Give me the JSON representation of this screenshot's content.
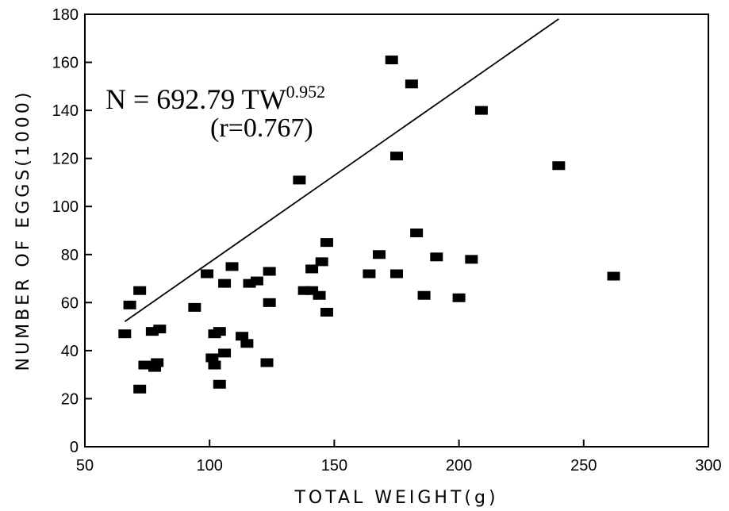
{
  "chart_data": {
    "type": "scatter",
    "xlabel": "TOTAL WEIGHT(g)",
    "ylabel": "NUMBER OF EGGS(1000)",
    "xlim": [
      50,
      300
    ],
    "ylim": [
      0,
      180
    ],
    "xticks": [
      50,
      100,
      150,
      200,
      250,
      300
    ],
    "yticks": [
      0,
      20,
      40,
      60,
      80,
      100,
      120,
      140,
      160,
      180
    ],
    "annotation": {
      "equation_prefix": "N  =  692.79  TW",
      "exponent": "0.952",
      "r_text": "(r=0.767)"
    },
    "fit_line": {
      "coefficient": 692.79,
      "exponent": 0.952,
      "x_range": [
        66,
        240
      ]
    },
    "points": [
      [
        66,
        47
      ],
      [
        68,
        59
      ],
      [
        72,
        65
      ],
      [
        72,
        24
      ],
      [
        74,
        34
      ],
      [
        77,
        48
      ],
      [
        78,
        33
      ],
      [
        79,
        35
      ],
      [
        80,
        49
      ],
      [
        94,
        58
      ],
      [
        99,
        72
      ],
      [
        101,
        37
      ],
      [
        102,
        34
      ],
      [
        102,
        47
      ],
      [
        104,
        26
      ],
      [
        104,
        48
      ],
      [
        106,
        39
      ],
      [
        106,
        68
      ],
      [
        109,
        75
      ],
      [
        113,
        46
      ],
      [
        115,
        43
      ],
      [
        116,
        68
      ],
      [
        119,
        69
      ],
      [
        123,
        35
      ],
      [
        124,
        73
      ],
      [
        124,
        60
      ],
      [
        136,
        111
      ],
      [
        138,
        65
      ],
      [
        141,
        65
      ],
      [
        141,
        74
      ],
      [
        144,
        63
      ],
      [
        145,
        77
      ],
      [
        147,
        85
      ],
      [
        147,
        56
      ],
      [
        164,
        72
      ],
      [
        168,
        80
      ],
      [
        173,
        161
      ],
      [
        175,
        121
      ],
      [
        175,
        72
      ],
      [
        181,
        151
      ],
      [
        183,
        89
      ],
      [
        186,
        63
      ],
      [
        191,
        79
      ],
      [
        200,
        62
      ],
      [
        205,
        78
      ],
      [
        209,
        140
      ],
      [
        240,
        117
      ],
      [
        262,
        71
      ]
    ]
  }
}
